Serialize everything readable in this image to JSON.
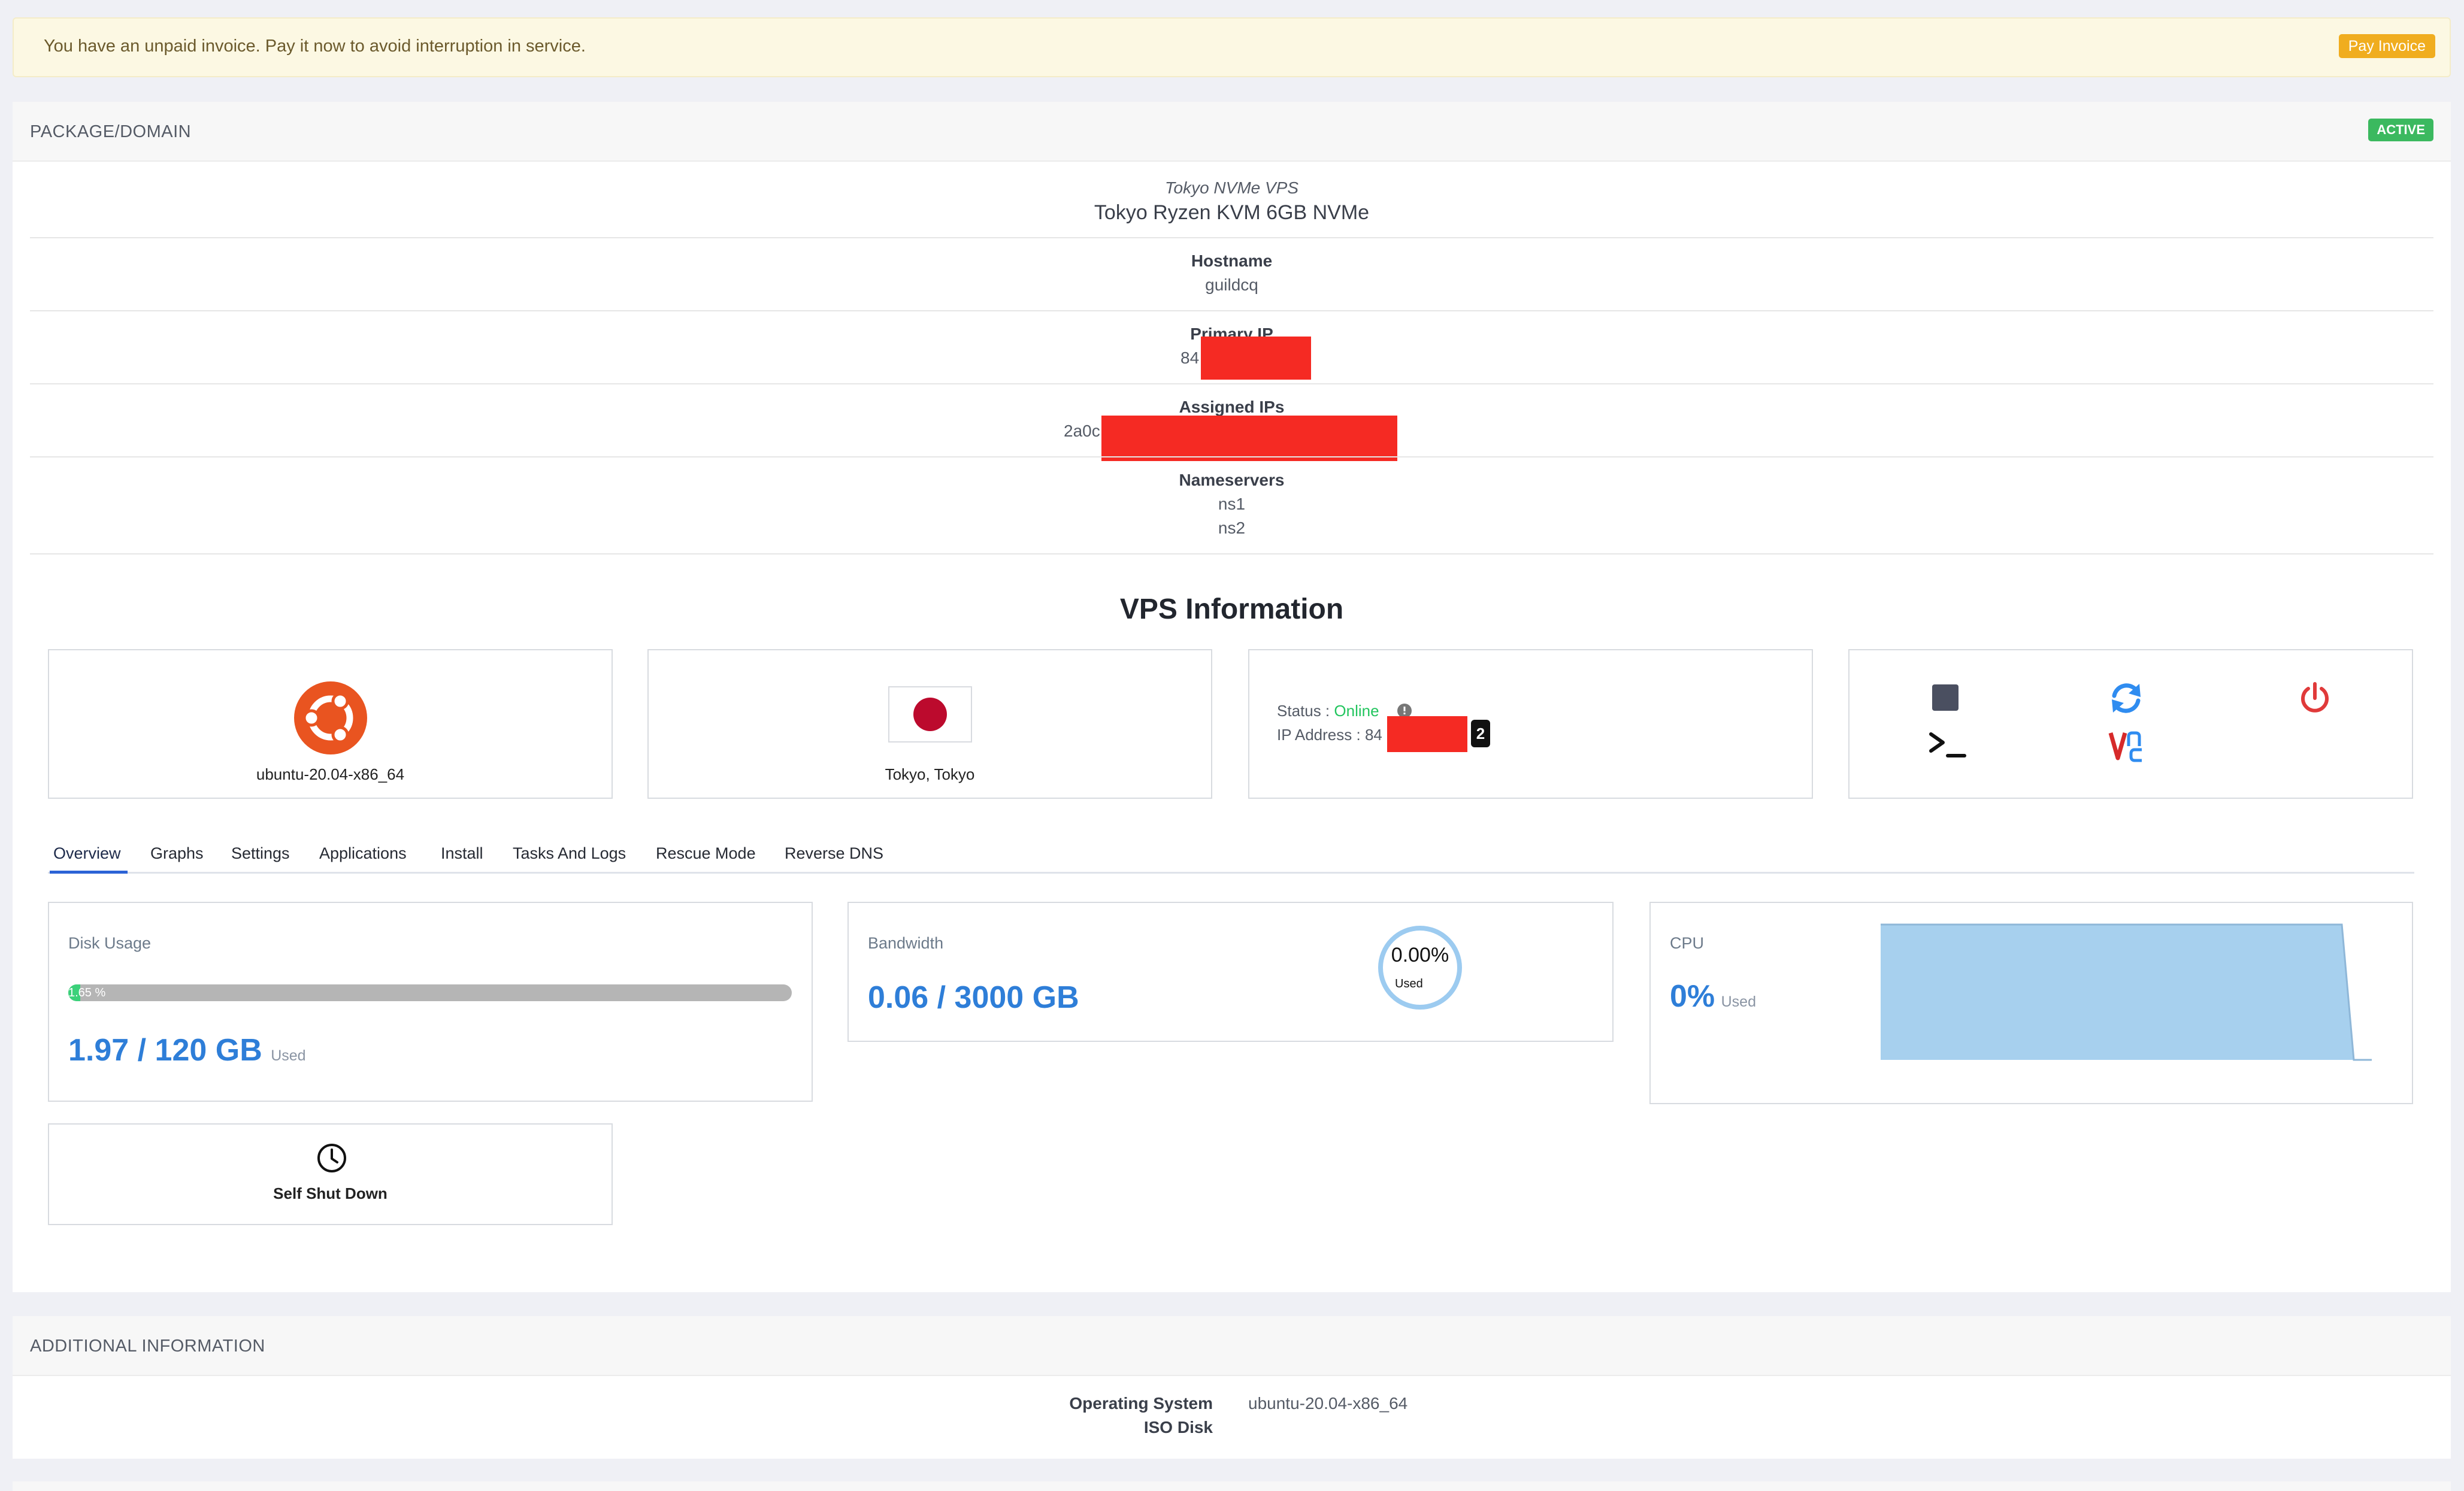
{
  "alert": {
    "message": "You have an unpaid invoice. Pay it now to avoid interruption in service.",
    "button": "Pay Invoice"
  },
  "package": {
    "header": "PACKAGE/DOMAIN",
    "status": "ACTIVE",
    "group": "Tokyo NVMe VPS",
    "product": "Tokyo Ryzen KVM 6GB NVMe",
    "hostname_label": "Hostname",
    "hostname": "guildcq",
    "primary_ip_label": "Primary IP",
    "primary_ip_prefix": "84",
    "assigned_ips_label": "Assigned IPs",
    "assigned_ip_prefix": "2a0c",
    "nameservers_label": "Nameservers",
    "ns1": "ns1",
    "ns2": "ns2"
  },
  "vps": {
    "heading": "VPS Information",
    "os": "ubuntu-20.04-x86_64",
    "location": "Tokyo, Tokyo",
    "status_label": "Status :",
    "status": "Online",
    "ip_label": "IP Address :",
    "ip_prefix": "84",
    "ip_count": "2"
  },
  "tabs": [
    "Overview",
    "Graphs",
    "Settings",
    "Applications",
    "Install",
    "Tasks And Logs",
    "Rescue Mode",
    "Reverse DNS"
  ],
  "disk": {
    "title": "Disk Usage",
    "percent_label": "1.65 %",
    "percent": 1.65,
    "value": "1.97 / 120 GB",
    "used": "Used"
  },
  "bandwidth": {
    "title": "Bandwidth",
    "value": "0.06 / 3000 GB",
    "ring_value": "0.00%",
    "ring_used": "Used"
  },
  "cpu": {
    "title": "CPU",
    "value": "0%",
    "used": "Used"
  },
  "self_shutdown": {
    "label": "Self Shut Down"
  },
  "additional": {
    "header": "ADDITIONAL INFORMATION",
    "os_label": "Operating System",
    "os_value": "ubuntu-20.04-x86_64",
    "iso_label": "ISO Disk"
  },
  "icons": {
    "stop": "stop-icon",
    "restart": "restart-icon",
    "power": "power-icon",
    "console": "console-icon",
    "vnc": "vnc-icon",
    "clock": "clock-icon",
    "ubuntu": "ubuntu-logo",
    "flag": "japan-flag"
  },
  "colors": {
    "accent": "#2e7ed8",
    "online": "#22c55e",
    "active_badge": "#3bb95f",
    "pay_button": "#f0ad1f",
    "power": "#e03a3a",
    "ubuntu": "#e95420"
  }
}
